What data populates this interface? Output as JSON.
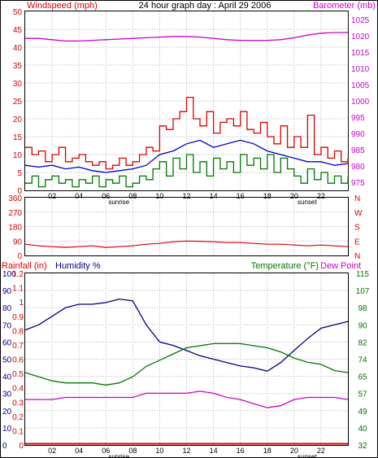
{
  "colors": {
    "wind": "#dd0000",
    "wind_avg": "#0000cc",
    "wind_min": "#007700",
    "baro": "#cc00cc",
    "dir": "#dd0000",
    "rain": "#dd0000",
    "humidity": "#000088",
    "temp": "#007700",
    "dew": "#cc00cc",
    "grid": "#b0b0b0",
    "frame": "#000000"
  },
  "chart_data": [
    {
      "type": "line",
      "title": "24 hour graph day : April 29 2006",
      "ylabel_left": "Windspeed (mph)",
      "ylabel_right": "Barometer (mb)",
      "ylim_left": [
        0,
        50
      ],
      "ylim_right": [
        972.5,
        1027.5
      ],
      "yticks_left": [
        "0",
        "5",
        "10",
        "15",
        "20",
        "25",
        "30",
        "35",
        "40",
        "45",
        "50"
      ],
      "yticks_right": [
        "975",
        "980",
        "985",
        "990",
        "995",
        "1000",
        "1005",
        "1010",
        "1015",
        "1020",
        "1025"
      ],
      "xlim": [
        0,
        24
      ],
      "xticks": [
        {
          "x": 2,
          "label": "02"
        },
        {
          "x": 4,
          "label": "04"
        },
        {
          "x": 6,
          "label": "06"
        },
        {
          "x": 8,
          "label": "08"
        },
        {
          "x": 10,
          "label": "10"
        },
        {
          "x": 12,
          "label": "12"
        },
        {
          "x": 14,
          "label": "14"
        },
        {
          "x": 16,
          "label": "16"
        },
        {
          "x": 18,
          "label": "18"
        },
        {
          "x": 20,
          "label": "20"
        },
        {
          "x": 22,
          "label": "22"
        },
        {
          "x": 24,
          "label": ""
        }
      ],
      "annotations": [
        {
          "x": 6,
          "label": "sunrise"
        },
        {
          "x": 20,
          "label": "sunset"
        }
      ],
      "series": [
        {
          "name": "Gust",
          "axis": "left",
          "color": "#dd0000",
          "step": true,
          "x": [
            0,
            0.5,
            1,
            1.5,
            2,
            2.5,
            3,
            3.5,
            4,
            4.5,
            5,
            5.5,
            6,
            6.5,
            7,
            7.5,
            8,
            8.5,
            9,
            9.5,
            10,
            10.5,
            11,
            11.5,
            12,
            12.5,
            13,
            13.5,
            14,
            14.5,
            15,
            15.5,
            16,
            16.5,
            17,
            17.5,
            18,
            18.5,
            19,
            19.5,
            20,
            20.5,
            21,
            21.5,
            22,
            22.5,
            23,
            23.5,
            24
          ],
          "values": [
            12,
            10,
            11,
            8,
            10,
            12,
            8,
            9,
            10,
            8,
            7,
            8,
            6,
            7,
            9,
            7,
            8,
            10,
            12,
            11,
            18,
            17,
            20,
            22,
            26,
            20,
            18,
            22,
            16,
            19,
            20,
            18,
            22,
            17,
            16,
            19,
            15,
            13,
            18,
            12,
            15,
            12,
            21,
            10,
            12,
            9,
            11,
            8,
            9
          ]
        },
        {
          "name": "Average",
          "axis": "left",
          "color": "#0000cc",
          "x": [
            0,
            1,
            2,
            3,
            4,
            5,
            6,
            7,
            8,
            9,
            10,
            11,
            12,
            13,
            14,
            15,
            16,
            17,
            18,
            19,
            20,
            21,
            22,
            23,
            24
          ],
          "values": [
            7,
            6.5,
            7,
            6,
            6.5,
            5.5,
            5,
            5.5,
            6,
            7,
            10,
            11,
            13,
            14,
            12,
            13,
            14,
            13,
            11,
            10,
            9,
            8,
            8,
            7,
            7.5
          ]
        },
        {
          "name": "Lull",
          "axis": "left",
          "color": "#007700",
          "step": true,
          "x": [
            0,
            0.5,
            1,
            1.5,
            2,
            2.5,
            3,
            3.5,
            4,
            4.5,
            5,
            5.5,
            6,
            6.5,
            7,
            7.5,
            8,
            8.5,
            9,
            9.5,
            10,
            10.5,
            11,
            11.5,
            12,
            12.5,
            13,
            13.5,
            14,
            14.5,
            15,
            15.5,
            16,
            16.5,
            17,
            17.5,
            18,
            18.5,
            19,
            19.5,
            20,
            20.5,
            21,
            21.5,
            22,
            22.5,
            23,
            23.5,
            24
          ],
          "values": [
            2,
            4,
            1,
            3,
            4,
            2,
            3,
            1,
            3,
            2,
            4,
            1,
            3,
            2,
            4,
            1,
            2,
            4,
            3,
            6,
            8,
            4,
            9,
            6,
            10,
            5,
            8,
            4,
            9,
            6,
            8,
            5,
            10,
            7,
            9,
            6,
            10,
            5,
            9,
            6,
            4,
            2,
            6,
            3,
            5,
            2,
            4,
            2,
            4
          ]
        },
        {
          "name": "Barometer",
          "axis": "right",
          "color": "#cc00cc",
          "x": [
            0,
            1,
            2,
            3,
            4,
            5,
            6,
            7,
            8,
            9,
            10,
            11,
            12,
            13,
            14,
            15,
            16,
            17,
            18,
            19,
            20,
            21,
            22,
            23,
            24
          ],
          "values": [
            1019.2,
            1019.2,
            1018.8,
            1018.4,
            1018.4,
            1018.6,
            1018.8,
            1019.0,
            1019.2,
            1019.4,
            1019.6,
            1019.8,
            1019.8,
            1019.6,
            1019.2,
            1018.8,
            1018.6,
            1018.6,
            1018.6,
            1018.8,
            1019.4,
            1020.2,
            1020.8,
            1021.0,
            1021.0
          ]
        }
      ]
    },
    {
      "type": "line",
      "ylabel_right": "N W S E N",
      "ylim": [
        0,
        360
      ],
      "yticks_left": [
        "0",
        "90",
        "180",
        "270",
        "360"
      ],
      "yticks_right": [
        "N",
        "E",
        "S",
        "W",
        "N"
      ],
      "xlim": [
        0,
        24
      ],
      "series": [
        {
          "name": "Wind direction",
          "color": "#dd0000",
          "x": [
            0,
            1,
            2,
            3,
            4,
            5,
            6,
            7,
            8,
            9,
            10,
            11,
            12,
            13,
            14,
            15,
            16,
            17,
            18,
            19,
            20,
            21,
            22,
            23,
            24
          ],
          "values": [
            70,
            60,
            55,
            50,
            55,
            60,
            50,
            55,
            60,
            70,
            75,
            85,
            90,
            88,
            85,
            80,
            80,
            75,
            70,
            70,
            65,
            60,
            65,
            60,
            55
          ]
        }
      ]
    },
    {
      "type": "line",
      "ylabel_left": "Rainfall (in)",
      "ylabel_mid": "Humidity %",
      "ylabel_right": "Temperature (°F)",
      "ylabel_right2": "Dew Point",
      "xlim": [
        0,
        24
      ],
      "yticks_left": [
        "0",
        "10",
        "20",
        "30",
        "40",
        "50",
        "60",
        "70",
        "80",
        "90",
        "100"
      ],
      "yticks_left2": [
        "0",
        "0.1",
        "0.2",
        "0.3",
        "0.4",
        "0.5",
        "0.6",
        "0.7",
        "0.8",
        "0.9",
        "1",
        "1.1",
        "1.2"
      ],
      "yticks_right": [
        "32",
        "40",
        "49",
        "57",
        "65",
        "74",
        "82",
        "90",
        "98",
        "107",
        "115"
      ],
      "ylim_humidity": [
        0,
        100
      ],
      "ylim_temp": [
        32,
        115
      ],
      "xticks": [
        {
          "x": 2,
          "label": "02"
        },
        {
          "x": 4,
          "label": "04"
        },
        {
          "x": 6,
          "label": "06"
        },
        {
          "x": 8,
          "label": "08"
        },
        {
          "x": 10,
          "label": "10"
        },
        {
          "x": 12,
          "label": "12"
        },
        {
          "x": 14,
          "label": "14"
        },
        {
          "x": 16,
          "label": "16"
        },
        {
          "x": 18,
          "label": "18"
        },
        {
          "x": 20,
          "label": "20"
        },
        {
          "x": 22,
          "label": "22"
        }
      ],
      "annotations": [
        {
          "x": 6,
          "label": "sunrise"
        },
        {
          "x": 20,
          "label": "sunset"
        }
      ],
      "series": [
        {
          "name": "Rainfall",
          "axis": "rain",
          "color": "#dd0000",
          "x": [
            0,
            24
          ],
          "values": [
            0,
            0
          ]
        },
        {
          "name": "Humidity",
          "axis": "humidity",
          "color": "#000088",
          "x": [
            0,
            1,
            2,
            3,
            4,
            5,
            6,
            7,
            8,
            9,
            10,
            11,
            12,
            13,
            14,
            15,
            16,
            17,
            18,
            19,
            20,
            21,
            22,
            23,
            24
          ],
          "values": [
            67,
            70,
            75,
            80,
            82,
            82,
            83,
            85,
            84,
            70,
            60,
            58,
            55,
            52,
            50,
            48,
            46,
            45,
            43,
            48,
            55,
            62,
            68,
            70,
            72
          ]
        },
        {
          "name": "Temperature",
          "axis": "temp",
          "color": "#007700",
          "x": [
            0,
            1,
            2,
            3,
            4,
            5,
            6,
            7,
            8,
            9,
            10,
            11,
            12,
            13,
            14,
            15,
            16,
            17,
            18,
            19,
            20,
            21,
            22,
            23,
            24
          ],
          "values": [
            67,
            65,
            63,
            62,
            62,
            62,
            61,
            62,
            65,
            70,
            73,
            76,
            79,
            80,
            81,
            81,
            81,
            80,
            79,
            77,
            74,
            72,
            71,
            68,
            67
          ]
        },
        {
          "name": "Dew Point",
          "axis": "temp",
          "color": "#cc00cc",
          "x": [
            0,
            1,
            2,
            3,
            4,
            5,
            6,
            7,
            8,
            9,
            10,
            11,
            12,
            13,
            14,
            15,
            16,
            17,
            18,
            19,
            20,
            21,
            22,
            23,
            24
          ],
          "values": [
            54,
            54,
            54,
            55,
            55,
            55,
            55,
            55,
            55,
            57,
            57,
            57,
            57,
            58,
            57,
            55,
            54,
            52,
            50,
            51,
            54,
            55,
            55,
            55,
            54
          ]
        }
      ]
    }
  ]
}
